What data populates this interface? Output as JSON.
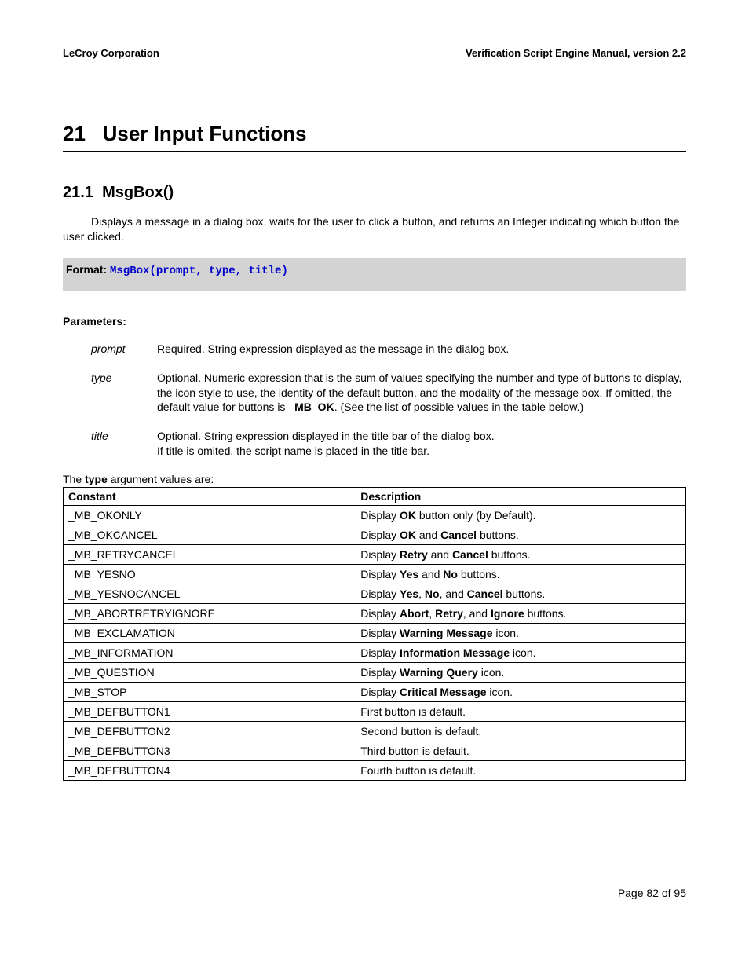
{
  "header": {
    "left": "LeCroy Corporation",
    "right": "Verification Script Engine Manual, version 2.2"
  },
  "section": {
    "number": "21",
    "title": "User Input Functions"
  },
  "subsection": {
    "number": "21.1",
    "title": "MsgBox()"
  },
  "description": "Displays a message in a dialog box, waits for the user to click a button, and returns an Integer indicating which button the user clicked.",
  "format": {
    "label": "Format:",
    "code": "MsgBox(prompt, type, title)"
  },
  "parameters_label": "Parameters:",
  "parameters": [
    {
      "name": "prompt",
      "desc_html": "Required. String expression displayed as the message in the dialog box."
    },
    {
      "name": "type",
      "desc_html": "Optional. Numeric expression that is the sum of values specifying the number and type of buttons to display, the icon style to use, the identity of the default button, and the modality of the message box. If omitted, the default value for buttons is <span class=\"b\">_MB_OK</span>. (See the list of possible values in the table below.)"
    },
    {
      "name": "title",
      "desc_html": "Optional. String expression displayed in the title bar of the dialog box.<br>If title is omited, the script name is placed in the title bar."
    }
  ],
  "type_intro_html": "The <span class=\"b\">type</span> argument values are:",
  "table": {
    "headers": [
      "Constant",
      "Description"
    ],
    "rows": [
      {
        "constant": "_MB_OKONLY",
        "desc_html": "Display <span class=\"b\">OK</span> button only (by Default)."
      },
      {
        "constant": "_MB_OKCANCEL",
        "desc_html": "Display <span class=\"b\">OK</span> and <span class=\"b\">Cancel</span> buttons."
      },
      {
        "constant": "_MB_RETRYCANCEL",
        "desc_html": "Display <span class=\"b\">Retry</span> and <span class=\"b\">Cancel</span> buttons."
      },
      {
        "constant": "_MB_YESNO",
        "desc_html": "Display <span class=\"b\">Yes</span> and <span class=\"b\">No</span> buttons."
      },
      {
        "constant": "_MB_YESNOCANCEL",
        "desc_html": "Display <span class=\"b\">Yes</span>, <span class=\"b\">No</span>, and <span class=\"b\">Cancel</span> buttons."
      },
      {
        "constant": "_MB_ABORTRETRYIGNORE",
        "desc_html": "Display <span class=\"b\">Abort</span>, <span class=\"b\">Retry</span>, and <span class=\"b\">Ignore</span> buttons."
      },
      {
        "constant": "_MB_EXCLAMATION",
        "desc_html": "Display <span class=\"b\">Warning Message</span> icon."
      },
      {
        "constant": "_MB_INFORMATION",
        "desc_html": "Display <span class=\"b\">Information Message</span> icon."
      },
      {
        "constant": "_MB_QUESTION",
        "desc_html": "Display <span class=\"b\">Warning Query</span> icon."
      },
      {
        "constant": "_MB_STOP",
        "desc_html": "Display <span class=\"b\">Critical Message</span> icon."
      },
      {
        "constant": "_MB_DEFBUTTON1",
        "desc_html": "First button is default."
      },
      {
        "constant": "_MB_DEFBUTTON2",
        "desc_html": "Second button is default."
      },
      {
        "constant": "_MB_DEFBUTTON3",
        "desc_html": "Third button is default."
      },
      {
        "constant": "_MB_DEFBUTTON4",
        "desc_html": "Fourth button is default."
      }
    ]
  },
  "footer": "Page 82 of 95"
}
